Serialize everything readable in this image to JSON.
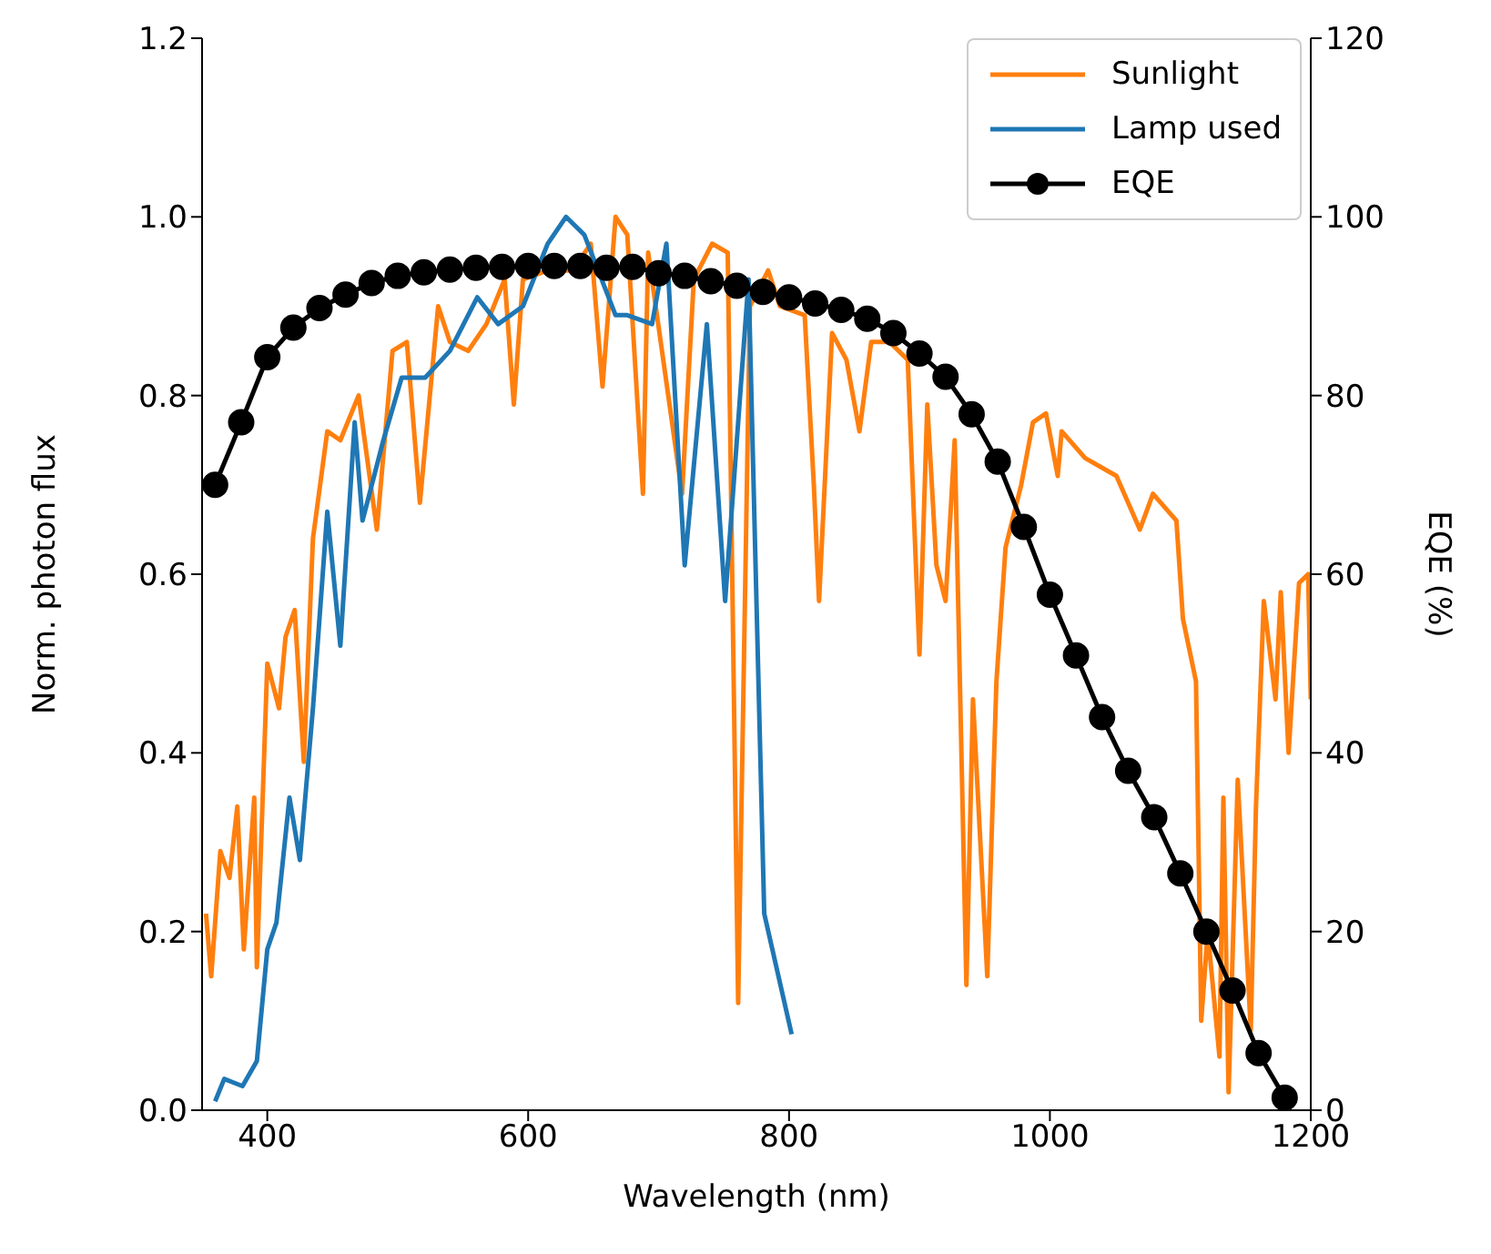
{
  "chart_data": {
    "type": "line",
    "xlabel": "Wavelength (nm)",
    "ylabel": "Norm. photon flux",
    "y2label": "EQE (%)",
    "xlim": [
      350,
      1200
    ],
    "xticks": [
      400,
      600,
      800,
      1000,
      1200
    ],
    "ylim": [
      0,
      1.2
    ],
    "yticks": [
      {
        "value": 0,
        "label": "0.0"
      },
      {
        "value": 0.2,
        "label": "0.2"
      },
      {
        "value": 0.4,
        "label": "0.4"
      },
      {
        "value": 0.6,
        "label": "0.6"
      },
      {
        "value": 0.8,
        "label": "0.8"
      },
      {
        "value": 1,
        "label": "1.0"
      },
      {
        "value": 1.2,
        "label": "1.2"
      }
    ],
    "y2lim": [
      0,
      120
    ],
    "y2ticks": [
      0,
      20,
      40,
      60,
      80,
      100,
      120
    ],
    "grid": false,
    "legend": "top right",
    "line_style": "solid",
    "series": [
      {
        "name": "Sunlight",
        "color": "#ff7f0e",
        "marker": "none",
        "x": [
          353,
          357,
          364,
          371,
          377,
          382,
          390,
          392,
          400,
          409,
          414,
          421,
          428,
          435,
          446,
          456,
          470,
          484,
          496,
          507,
          517,
          531,
          540,
          554,
          568,
          582,
          589,
          596,
          615,
          634,
          648,
          657,
          667,
          676,
          688,
          692,
          718,
          727,
          741,
          753,
          761,
          770,
          784,
          793,
          812,
          819,
          823,
          833,
          844,
          854,
          863,
          877,
          891,
          900,
          906,
          913,
          920,
          927,
          936,
          941,
          952,
          959,
          966,
          978,
          987,
          997,
          1006,
          1009,
          1027,
          1051,
          1069,
          1079,
          1097,
          1102,
          1112,
          1116,
          1121,
          1130,
          1133,
          1137,
          1144,
          1154,
          1158,
          1164,
          1173,
          1177,
          1183,
          1191,
          1198,
          1200
        ],
        "values": [
          0.22,
          0.15,
          0.29,
          0.26,
          0.34,
          0.18,
          0.35,
          0.16,
          0.5,
          0.45,
          0.53,
          0.56,
          0.39,
          0.64,
          0.76,
          0.75,
          0.8,
          0.65,
          0.85,
          0.86,
          0.68,
          0.9,
          0.86,
          0.85,
          0.88,
          0.93,
          0.79,
          0.93,
          0.94,
          0.94,
          0.97,
          0.81,
          1.0,
          0.98,
          0.69,
          0.96,
          0.69,
          0.93,
          0.97,
          0.96,
          0.12,
          0.9,
          0.94,
          0.9,
          0.89,
          0.7,
          0.57,
          0.87,
          0.84,
          0.76,
          0.86,
          0.86,
          0.84,
          0.51,
          0.79,
          0.61,
          0.57,
          0.75,
          0.14,
          0.46,
          0.15,
          0.48,
          0.63,
          0.7,
          0.77,
          0.78,
          0.71,
          0.76,
          0.73,
          0.71,
          0.65,
          0.69,
          0.66,
          0.55,
          0.48,
          0.1,
          0.2,
          0.06,
          0.35,
          0.02,
          0.37,
          0.09,
          0.34,
          0.57,
          0.46,
          0.58,
          0.4,
          0.59,
          0.6,
          0.46
        ]
      },
      {
        "name": "Lamp used",
        "color": "#1f77b4",
        "marker": "none",
        "x": [
          360,
          367,
          381,
          392,
          400,
          407,
          417,
          425,
          435,
          446,
          456,
          467,
          473,
          489,
          503,
          521,
          540,
          561,
          577,
          596,
          615,
          629,
          643,
          667,
          676,
          695,
          706,
          720,
          737,
          751,
          769,
          774,
          781,
          802
        ],
        "values": [
          0.01,
          0.035,
          0.027,
          0.055,
          0.18,
          0.21,
          0.35,
          0.28,
          0.45,
          0.67,
          0.52,
          0.77,
          0.66,
          0.75,
          0.82,
          0.82,
          0.85,
          0.91,
          0.88,
          0.9,
          0.97,
          1.0,
          0.98,
          0.89,
          0.89,
          0.88,
          0.97,
          0.61,
          0.88,
          0.57,
          0.93,
          0.63,
          0.22,
          0.085
        ]
      },
      {
        "name": "EQE",
        "color": "#000000",
        "marker": "circle",
        "axis": "y2",
        "x": [
          360,
          380,
          400,
          420,
          440,
          460,
          480,
          500,
          520,
          540,
          560,
          580,
          600,
          620,
          640,
          660,
          680,
          700,
          720,
          740,
          760,
          780,
          800,
          820,
          840,
          860,
          880,
          900,
          920,
          940,
          960,
          980,
          1000,
          1020,
          1040,
          1060,
          1080,
          1100,
          1120,
          1140,
          1160,
          1180
        ],
        "values": [
          70,
          77,
          84.3,
          87.6,
          89.8,
          91.3,
          92.6,
          93.4,
          93.8,
          94.1,
          94.3,
          94.4,
          94.5,
          94.5,
          94.5,
          94.3,
          94.4,
          93.7,
          93.4,
          92.8,
          92.3,
          91.6,
          91,
          90.3,
          89.6,
          88.6,
          87,
          84.7,
          82.1,
          77.9,
          72.6,
          65.3,
          57.7,
          50.9,
          44,
          38,
          32.8,
          26.5,
          20,
          13.4,
          6.4,
          1.4
        ]
      }
    ]
  }
}
